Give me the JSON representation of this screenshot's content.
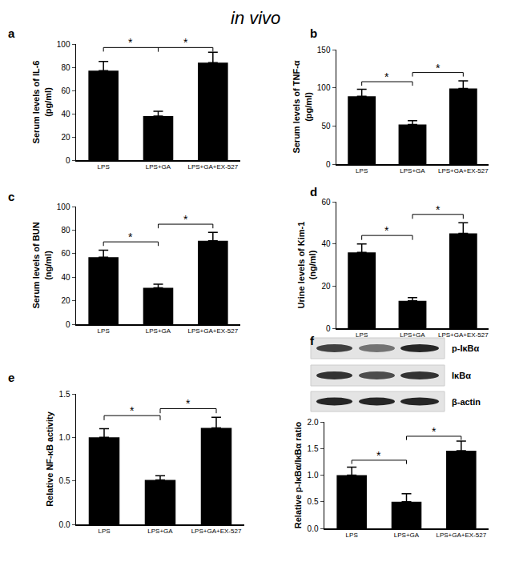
{
  "title": "in vivo",
  "chart_data": [
    {
      "type": "bar",
      "panel": "a",
      "y_label": "Serum levels of IL-6\n(pg/ml)",
      "categories": [
        "LPS",
        "LPS+GA",
        "LPS+GA+EX-527"
      ],
      "values": [
        77,
        38,
        84
      ],
      "errors": [
        8,
        4,
        9
      ],
      "color": "#000000",
      "ylim": [
        0,
        100
      ],
      "yticks": [
        0,
        20,
        40,
        60,
        80,
        100
      ],
      "significance": [
        {
          "from": 0,
          "to": 1,
          "y": 97,
          "label": "*"
        },
        {
          "from": 1,
          "to": 2,
          "y": 97,
          "label": "*"
        }
      ]
    },
    {
      "type": "bar",
      "panel": "b",
      "y_label": "Serum levels of TNF-α\n(pg/ml)",
      "categories": [
        "LPS",
        "LPS+GA",
        "LPS+GA+EX-527"
      ],
      "values": [
        89,
        52,
        99
      ],
      "errors": [
        9,
        5,
        10
      ],
      "color": "#000000",
      "ylim": [
        0,
        150
      ],
      "yticks": [
        0,
        50,
        100,
        150
      ],
      "significance": [
        {
          "from": 0,
          "to": 1,
          "y": 108,
          "label": "*"
        },
        {
          "from": 1,
          "to": 2,
          "y": 120,
          "label": "*"
        }
      ]
    },
    {
      "type": "bar",
      "panel": "c",
      "y_label": "Serum levels of BUN\n(ng/ml)",
      "categories": [
        "LPS",
        "LPS+GA",
        "LPS+GA+EX-527"
      ],
      "values": [
        57,
        31,
        71
      ],
      "errors": [
        6,
        3,
        7
      ],
      "color": "#000000",
      "ylim": [
        0,
        100
      ],
      "yticks": [
        0,
        20,
        40,
        60,
        80,
        100
      ],
      "significance": [
        {
          "from": 0,
          "to": 1,
          "y": 70,
          "label": "*"
        },
        {
          "from": 1,
          "to": 2,
          "y": 85,
          "label": "*"
        }
      ]
    },
    {
      "type": "bar",
      "panel": "d",
      "y_label": "Urine levels of Kim-1\n(ng/ml)",
      "categories": [
        "LPS",
        "LPS+GA",
        "LPS+GA+EX-527"
      ],
      "values": [
        36,
        13,
        45
      ],
      "errors": [
        4,
        1.5,
        5
      ],
      "color": "#000000",
      "ylim": [
        0,
        60
      ],
      "yticks": [
        0,
        20,
        40,
        60
      ],
      "significance": [
        {
          "from": 0,
          "to": 1,
          "y": 44,
          "label": "*"
        },
        {
          "from": 1,
          "to": 2,
          "y": 54,
          "label": "*"
        }
      ]
    },
    {
      "type": "bar",
      "panel": "e",
      "y_label": "Relative NF-κB activity",
      "categories": [
        "LPS",
        "LPS+GA",
        "LPS+GA+EX-527"
      ],
      "values": [
        1.0,
        0.51,
        1.11
      ],
      "errors": [
        0.1,
        0.05,
        0.12
      ],
      "color": "#000000",
      "ylim": [
        0,
        1.5
      ],
      "yticks": [
        {
          "value": 0,
          "label": "0.0"
        },
        0.5,
        {
          "value": 1,
          "label": "1.0"
        },
        1.5
      ],
      "significance": [
        {
          "from": 0,
          "to": 1,
          "y": 1.25,
          "label": "*"
        },
        {
          "from": 1,
          "to": 2,
          "y": 1.33,
          "label": "*"
        }
      ]
    },
    {
      "type": "bar",
      "panel": "f",
      "y_label": "Relative p-IκBα/IκBα ratio",
      "categories": [
        "LPS",
        "LPS+GA",
        "LPS+GA+EX-527"
      ],
      "values": [
        1.0,
        0.5,
        1.46
      ],
      "errors": [
        0.15,
        0.15,
        0.18
      ],
      "color": "#000000",
      "ylim": [
        0,
        2
      ],
      "yticks": [
        {
          "value": 0,
          "label": "0.0"
        },
        0.5,
        {
          "value": 1,
          "label": "1.0"
        },
        1.5,
        {
          "value": 2,
          "label": "2.0"
        }
      ],
      "significance": [
        {
          "from": 0,
          "to": 1,
          "y": 1.28,
          "label": "*"
        },
        {
          "from": 1,
          "to": 2,
          "y": 1.73,
          "label": "*"
        }
      ],
      "blot": {
        "rows": [
          "p-IκBα",
          "IκBα",
          "β-actin"
        ]
      }
    }
  ]
}
